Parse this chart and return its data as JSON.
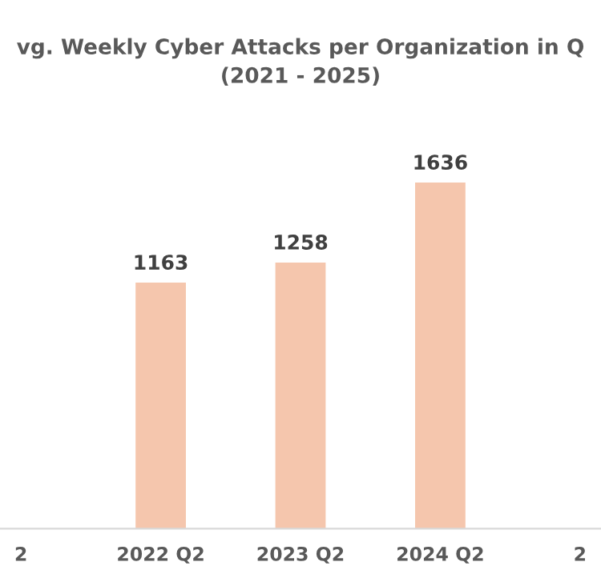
{
  "chart_data": {
    "type": "bar",
    "title": "vg. Weekly Cyber Attacks per Organization in Q\n(2021 - 2025)",
    "categories": [
      "2",
      "2022 Q2",
      "2023 Q2",
      "2024 Q2",
      "2"
    ],
    "values": [
      null,
      1163,
      1258,
      1636,
      null
    ],
    "color": "#f5c6ad",
    "tick_labels": "x",
    "data_labels": true,
    "grid": false,
    "legend": false
  }
}
